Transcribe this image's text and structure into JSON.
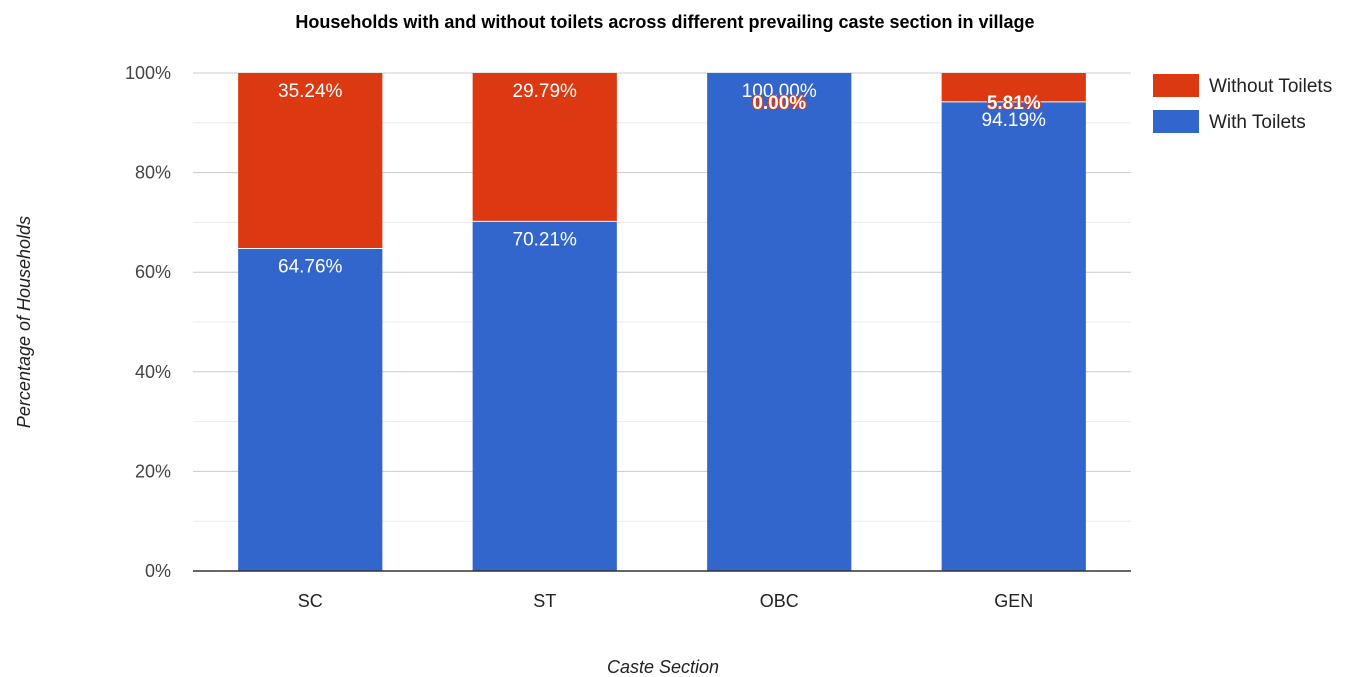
{
  "chart_data": {
    "type": "bar",
    "stacked": true,
    "title": "Households with and without toilets across different prevailing caste section in village",
    "xlabel": "Caste Section",
    "ylabel": "Percentage of Households",
    "categories": [
      "SC",
      "ST",
      "OBC",
      "GEN"
    ],
    "ylim": [
      0,
      100
    ],
    "yticks": [
      "0%",
      "20%",
      "40%",
      "60%",
      "80%",
      "100%"
    ],
    "grid": true,
    "legend_position": "right",
    "series": [
      {
        "name": "With Toilets",
        "color": "#3366cc",
        "values": [
          64.76,
          70.21,
          100.0,
          94.19
        ],
        "labels": [
          "64.76%",
          "70.21%",
          "100.00%",
          "94.19%"
        ]
      },
      {
        "name": "Without Toilets",
        "color": "#dc3912",
        "values": [
          35.24,
          29.79,
          0.0,
          5.81
        ],
        "labels": [
          "35.24%",
          "29.79%",
          "0.00%",
          "5.81%"
        ]
      }
    ]
  }
}
